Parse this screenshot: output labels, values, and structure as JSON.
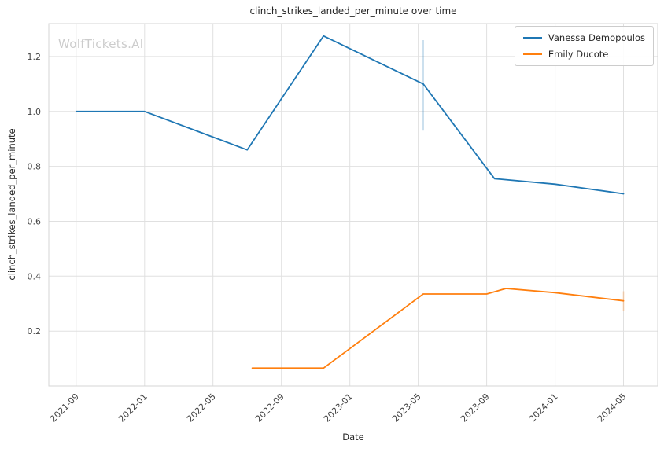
{
  "chart_data": {
    "type": "line",
    "title": "clinch_strikes_landed_per_minute over time",
    "xlabel": "Date",
    "ylabel": "clinch_strikes_landed_per_minute",
    "watermark": "WolfTickets.AI",
    "grid": true,
    "legend_position": "upper right",
    "x_tick_labels": [
      "2021-09",
      "2022-01",
      "2022-05",
      "2022-09",
      "2023-01",
      "2023-05",
      "2023-09",
      "2024-01",
      "2024-05"
    ],
    "y_ticks": [
      0.2,
      0.4,
      0.6,
      0.8,
      1.0,
      1.2
    ],
    "y_tick_labels": [
      "0.2",
      "0.4",
      "0.6",
      "0.8",
      "1.0",
      "1.2"
    ],
    "ylim": [
      0,
      1.32
    ],
    "xlim_pad_months": [
      -1.6,
      2.0
    ],
    "grid_color": "#e0e0e0",
    "border_color": "#d5d5d5",
    "series": [
      {
        "name": "Vanessa Demopoulos",
        "color": "#1f77b4",
        "points": [
          {
            "date": "2021-09-01",
            "value": 1.0
          },
          {
            "date": "2022-01-01",
            "value": 1.0
          },
          {
            "date": "2022-07-01",
            "value": 0.86
          },
          {
            "date": "2022-11-15",
            "value": 1.275
          },
          {
            "date": "2023-05-10",
            "value": 1.1
          },
          {
            "date": "2023-09-15",
            "value": 0.755
          },
          {
            "date": "2024-01-01",
            "value": 0.735
          },
          {
            "date": "2024-05-01",
            "value": 0.7
          }
        ],
        "error_bar": {
          "date": "2023-05-10",
          "lo": 0.93,
          "hi": 1.26
        }
      },
      {
        "name": "Emily Ducote",
        "color": "#ff7f0e",
        "points": [
          {
            "date": "2022-07-10",
            "value": 0.065
          },
          {
            "date": "2022-11-15",
            "value": 0.065
          },
          {
            "date": "2023-05-10",
            "value": 0.335
          },
          {
            "date": "2023-09-01",
            "value": 0.335
          },
          {
            "date": "2023-10-05",
            "value": 0.355
          },
          {
            "date": "2024-01-01",
            "value": 0.34
          },
          {
            "date": "2024-05-01",
            "value": 0.31
          }
        ],
        "error_bar": {
          "date": "2024-05-01",
          "lo": 0.275,
          "hi": 0.345
        }
      }
    ]
  }
}
